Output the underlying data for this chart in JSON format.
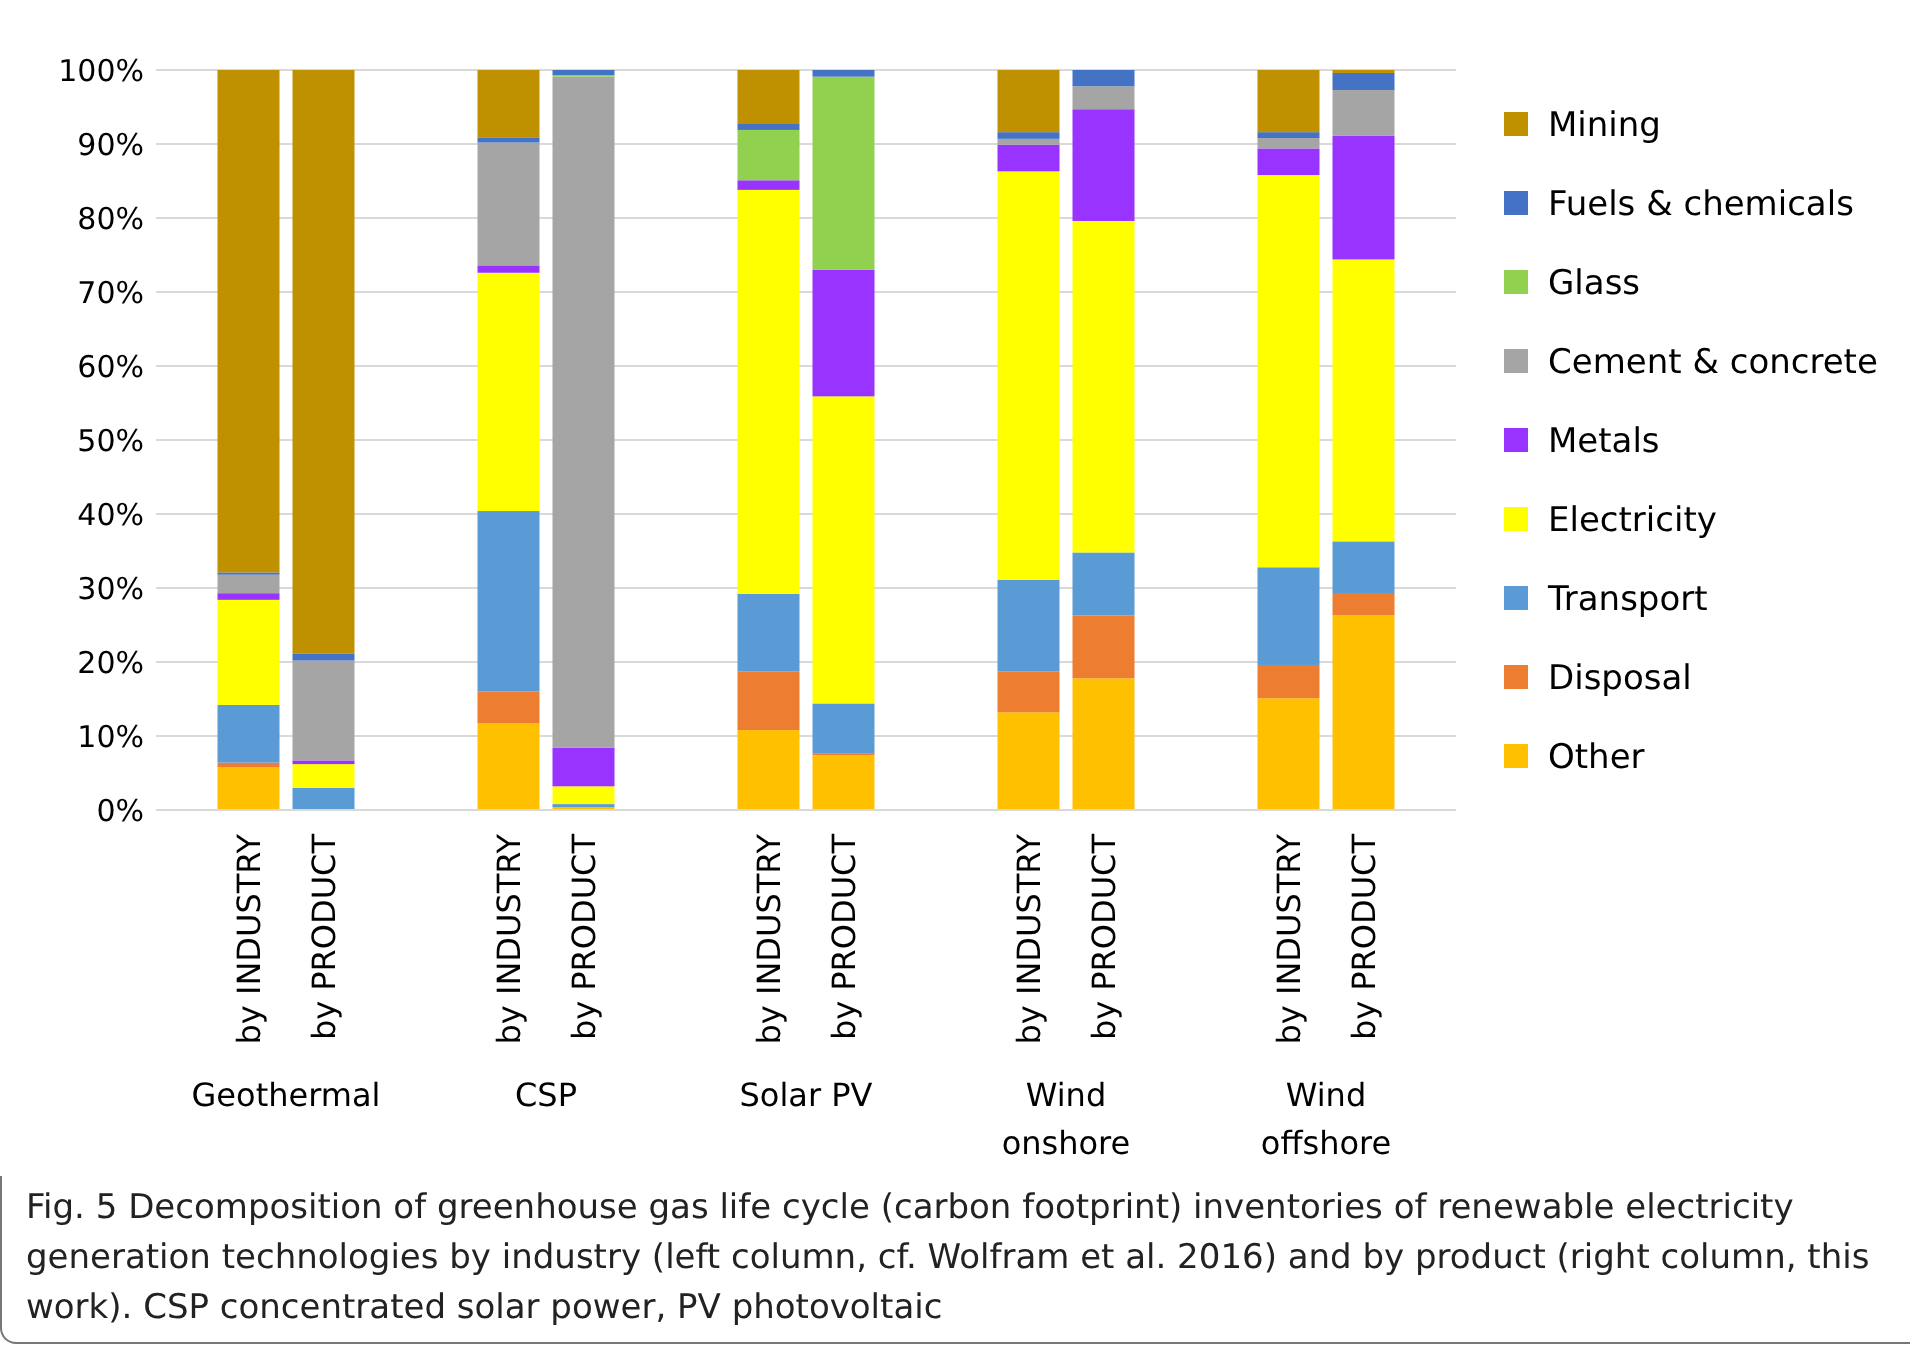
{
  "chart_data": {
    "type": "bar",
    "stacked": true,
    "categories": [
      "by INDUSTRY",
      "by PRODUCT",
      "by INDUSTRY",
      "by PRODUCT",
      "by INDUSTRY",
      "by PRODUCT",
      "by INDUSTRY",
      "by PRODUCT",
      "by INDUSTRY",
      "by PRODUCT"
    ],
    "series": [
      {
        "name": "Other",
        "color": "#ffc000",
        "values": [
          5.8,
          0,
          11.7,
          0.4,
          10.8,
          7.4,
          13.2,
          17.8,
          15.1,
          26.3
        ]
      },
      {
        "name": "Disposal",
        "color": "#ed7d31",
        "values": [
          0.6,
          0,
          4.3,
          0,
          7.9,
          0.2,
          5.5,
          8.5,
          4.5,
          2.9
        ]
      },
      {
        "name": "Transport",
        "color": "#5b9bd5",
        "values": [
          7.8,
          3.0,
          24.4,
          0.4,
          10.5,
          6.8,
          12.4,
          8.5,
          13.2,
          7.1
        ]
      },
      {
        "name": "Electricity",
        "color": "#ffff00",
        "values": [
          14.2,
          3.2,
          32.2,
          2.4,
          54.6,
          41.5,
          55.2,
          44.8,
          53.0,
          38.1
        ]
      },
      {
        "name": "Metals",
        "color": "#9933ff",
        "values": [
          0.9,
          0.5,
          1.0,
          5.2,
          1.3,
          17.1,
          3.6,
          15.1,
          3.6,
          16.7
        ]
      },
      {
        "name": "Cement & concrete",
        "color": "#a5a5a5",
        "values": [
          2.5,
          13.5,
          16.6,
          90.7,
          null,
          0,
          0.8,
          3.1,
          1.4,
          6.2
        ]
      },
      {
        "name": "Glass",
        "color": "#92d050",
        "values": [
          0,
          0,
          0,
          0.2,
          6.8,
          26.1,
          0,
          0,
          0,
          0
        ]
      },
      {
        "name": "Fuels & chemicals",
        "color": "#4472c4",
        "values": [
          0.3,
          0.9,
          0.7,
          0.7,
          0.8,
          0.9,
          0.9,
          2.2,
          0.8,
          2.3
        ]
      },
      {
        "name": "Mining",
        "color": "#bf9000",
        "values": [
          67.9,
          78.9,
          9.1,
          0,
          7.3,
          0,
          8.4,
          0,
          8.4,
          0.4
        ]
      }
    ],
    "ylim": [
      0,
      100
    ],
    "yticks": [
      {
        "value": 0,
        "label": "0%"
      },
      {
        "value": 10,
        "label": "10%"
      },
      {
        "value": 20,
        "label": "20%"
      },
      {
        "value": 30,
        "label": "30%"
      },
      {
        "value": 40,
        "label": "40%"
      },
      {
        "value": 50,
        "label": "50%"
      },
      {
        "value": 60,
        "label": "60%"
      },
      {
        "value": 70,
        "label": "70%"
      },
      {
        "value": 80,
        "label": "80%"
      },
      {
        "value": 90,
        "label": "90%"
      },
      {
        "value": 100,
        "label": "100%"
      }
    ],
    "grid": "y",
    "legend": "right",
    "annotations": [
      "Geothermal",
      "CSP",
      "Solar PV",
      "Wind onshore",
      "Wind offshore",
      "Fig. 5  Decomposition of greenhouse gas life cycle (carbon footprint) inventories of renewable electricity generation technologies by industry (left column, cf. Wolfram et al. 2016) and by product (right column, this work). CSP concentrated solar power, PV photovoltaic"
    ]
  }
}
